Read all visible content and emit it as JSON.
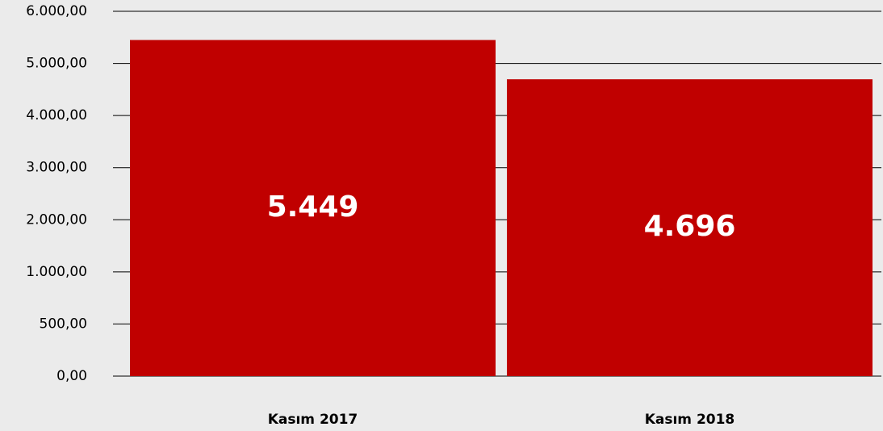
{
  "chart_data": {
    "type": "bar",
    "categories": [
      "Kasım 2017",
      "Kasım 2018"
    ],
    "values": [
      5449,
      4696
    ],
    "value_labels": [
      "5.449",
      "4.696"
    ],
    "color": "#c00000",
    "ylim": [
      0,
      6000
    ],
    "yticks": [
      {
        "value": 0,
        "label": "0,00"
      },
      {
        "value": 500,
        "label": "500,00"
      },
      {
        "value": 1000,
        "label": "1.000,00"
      },
      {
        "value": 2000,
        "label": "2.000,00"
      },
      {
        "value": 3000,
        "label": "3.000,00"
      },
      {
        "value": 4000,
        "label": "4.000,00"
      },
      {
        "value": 5000,
        "label": "5.000,00"
      },
      {
        "value": 6000,
        "label": "6.000,00"
      }
    ],
    "grid": true
  }
}
